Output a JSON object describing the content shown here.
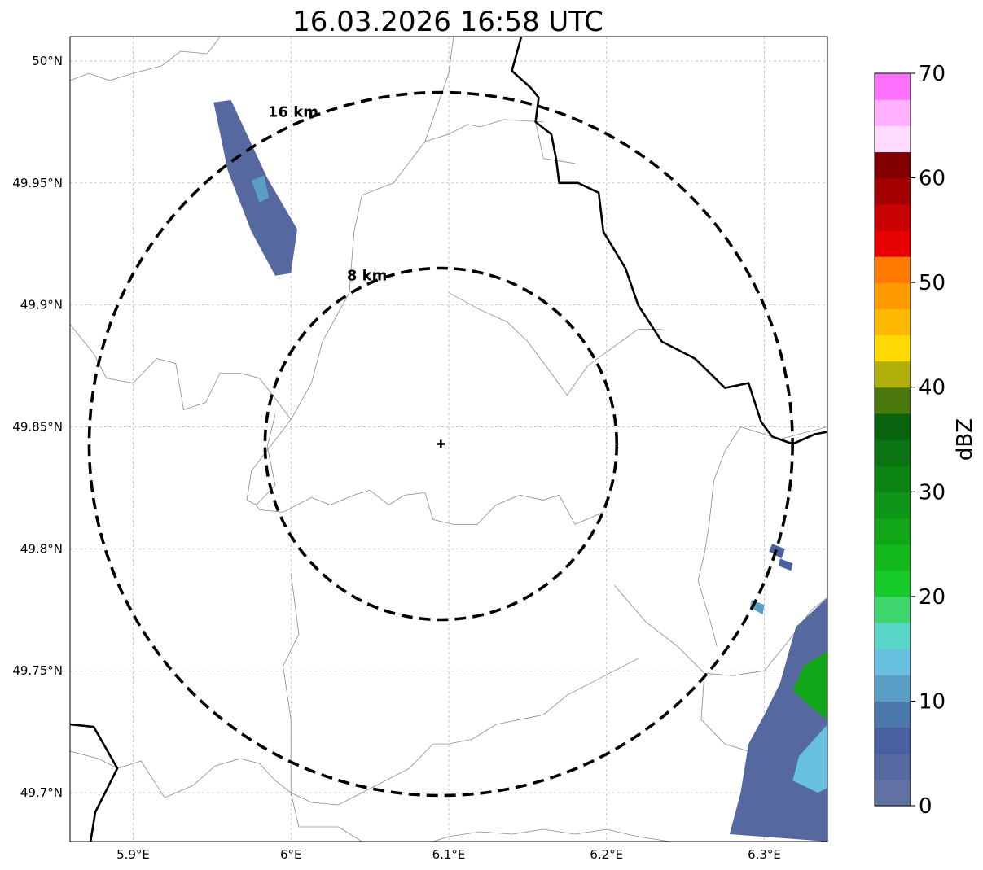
{
  "map": {
    "title": "16.03.2026 16:58 UTC",
    "lon_range": [
      5.86,
      6.34
    ],
    "lat_range": [
      49.68,
      50.01
    ],
    "lon_ticks": [
      {
        "value": 5.9,
        "label": "5.9°E"
      },
      {
        "value": 6.0,
        "label": "6°E"
      },
      {
        "value": 6.1,
        "label": "6.1°E"
      },
      {
        "value": 6.2,
        "label": "6.2°E"
      },
      {
        "value": 6.3,
        "label": "6.3°E"
      }
    ],
    "lat_ticks": [
      {
        "value": 50.0,
        "label": "50°N"
      },
      {
        "value": 49.95,
        "label": "49.95°N"
      },
      {
        "value": 49.9,
        "label": "49.9°N"
      },
      {
        "value": 49.85,
        "label": "49.85°N"
      },
      {
        "value": 49.8,
        "label": "49.8°N"
      },
      {
        "value": 49.75,
        "label": "49.75°N"
      },
      {
        "value": 49.7,
        "label": "49.7°N"
      }
    ],
    "gridlines": true,
    "radar_site": {
      "lon": 6.095,
      "lat": 49.843
    },
    "range_rings": [
      {
        "label": "8 km",
        "radius_km": 8
      },
      {
        "label": "16 km",
        "radius_km": 16
      }
    ]
  },
  "colorbar": {
    "label": "dBZ",
    "min": 0,
    "max": 70,
    "step": 2.5,
    "ticks": [
      "0",
      "10",
      "20",
      "30",
      "40",
      "50",
      "60",
      "70"
    ],
    "colors": [
      "#6272a5",
      "#5568a0",
      "#48609f",
      "#4a78ab",
      "#5a9ec6",
      "#67c0de",
      "#5ad6c8",
      "#3fd66e",
      "#17cc2a",
      "#12b81c",
      "#10a618",
      "#0e9416",
      "#0c8414",
      "#0a7312",
      "#08620e",
      "#4a7a0e",
      "#afb00a",
      "#ffd900",
      "#ffb900",
      "#ff9a00",
      "#ff7a00",
      "#e60000",
      "#c80000",
      "#a50000",
      "#820000",
      "#ffdcff",
      "#ffb0ff",
      "#ff70ff",
      "#f23cf2"
    ]
  },
  "echoes": [
    {
      "name": "northwest-band",
      "reflectivity_dbz": 3,
      "polygon": [
        [
          5.951,
          49.983
        ],
        [
          5.962,
          49.984
        ],
        [
          5.985,
          49.952
        ],
        [
          6.004,
          49.931
        ],
        [
          6.0,
          49.913
        ],
        [
          5.99,
          49.912
        ],
        [
          5.975,
          49.93
        ],
        [
          5.96,
          49.955
        ]
      ]
    },
    {
      "name": "northwest-core",
      "reflectivity_dbz": 12,
      "polygon": [
        [
          5.975,
          49.951
        ],
        [
          5.983,
          49.953
        ],
        [
          5.986,
          49.944
        ],
        [
          5.98,
          49.942
        ]
      ]
    },
    {
      "name": "southeast-cell",
      "reflectivity_dbz": 4,
      "polygon": [
        [
          6.34,
          49.78
        ],
        [
          6.32,
          49.768
        ],
        [
          6.31,
          49.745
        ],
        [
          6.3,
          49.732
        ],
        [
          6.29,
          49.72
        ],
        [
          6.285,
          49.7
        ],
        [
          6.278,
          49.683
        ],
        [
          6.34,
          49.68
        ]
      ]
    },
    {
      "name": "southeast-green-core",
      "reflectivity_dbz": 25,
      "polygon": [
        [
          6.34,
          49.758
        ],
        [
          6.325,
          49.752
        ],
        [
          6.318,
          49.742
        ],
        [
          6.33,
          49.735
        ],
        [
          6.34,
          49.73
        ]
      ]
    },
    {
      "name": "southeast-cyan-core",
      "reflectivity_dbz": 14,
      "polygon": [
        [
          6.34,
          49.728
        ],
        [
          6.322,
          49.715
        ],
        [
          6.318,
          49.705
        ],
        [
          6.334,
          49.7
        ],
        [
          6.34,
          49.702
        ]
      ]
    },
    {
      "name": "east-fragment-1",
      "reflectivity_dbz": 5,
      "polygon": [
        [
          6.305,
          49.802
        ],
        [
          6.313,
          49.8
        ],
        [
          6.311,
          49.796
        ],
        [
          6.303,
          49.799
        ]
      ]
    },
    {
      "name": "east-fragment-2",
      "reflectivity_dbz": 5,
      "polygon": [
        [
          6.31,
          49.796
        ],
        [
          6.318,
          49.794
        ],
        [
          6.317,
          49.791
        ],
        [
          6.309,
          49.793
        ]
      ]
    },
    {
      "name": "east-fragment-3",
      "reflectivity_dbz": 10,
      "polygon": [
        [
          6.292,
          49.779
        ],
        [
          6.3,
          49.777
        ],
        [
          6.299,
          49.773
        ],
        [
          6.291,
          49.776
        ]
      ]
    }
  ],
  "borders": [
    {
      "name": "border-northeast",
      "points": [
        [
          6.146,
          50.01
        ],
        [
          6.14,
          49.996
        ],
        [
          6.152,
          49.989
        ],
        [
          6.157,
          49.985
        ],
        [
          6.155,
          49.975
        ],
        [
          6.165,
          49.97
        ],
        [
          6.168,
          49.96
        ],
        [
          6.17,
          49.95
        ],
        [
          6.182,
          49.95
        ],
        [
          6.195,
          49.946
        ],
        [
          6.198,
          49.93
        ],
        [
          6.212,
          49.915
        ],
        [
          6.22,
          49.9
        ],
        [
          6.235,
          49.885
        ],
        [
          6.256,
          49.878
        ],
        [
          6.275,
          49.866
        ],
        [
          6.29,
          49.868
        ],
        [
          6.298,
          49.852
        ],
        [
          6.305,
          49.846
        ],
        [
          6.318,
          49.843
        ],
        [
          6.332,
          49.847
        ],
        [
          6.34,
          49.848
        ]
      ]
    },
    {
      "name": "border-southwest",
      "points": [
        [
          5.86,
          49.728
        ],
        [
          5.875,
          49.727
        ],
        [
          5.89,
          49.71
        ],
        [
          5.876,
          49.692
        ],
        [
          5.873,
          49.68
        ]
      ]
    }
  ],
  "boundaries": [
    {
      "name": "admin-line-1",
      "points": [
        [
          5.86,
          49.992
        ],
        [
          5.872,
          49.995
        ],
        [
          5.885,
          49.992
        ],
        [
          5.9,
          49.995
        ],
        [
          5.918,
          49.998
        ],
        [
          5.93,
          50.004
        ],
        [
          5.947,
          50.003
        ],
        [
          5.955,
          50.01
        ]
      ]
    },
    {
      "name": "admin-line-2",
      "points": [
        [
          5.86,
          49.892
        ],
        [
          5.875,
          49.88
        ],
        [
          5.883,
          49.87
        ],
        [
          5.9,
          49.868
        ],
        [
          5.915,
          49.878
        ],
        [
          5.927,
          49.876
        ],
        [
          5.932,
          49.857
        ],
        [
          5.946,
          49.86
        ],
        [
          5.955,
          49.872
        ],
        [
          5.968,
          49.872
        ],
        [
          5.98,
          49.87
        ],
        [
          5.992,
          49.86
        ],
        [
          6.0,
          49.853
        ]
      ]
    },
    {
      "name": "admin-line-3",
      "points": [
        [
          5.99,
          49.855
        ],
        [
          5.985,
          49.842
        ],
        [
          5.99,
          49.826
        ],
        [
          5.978,
          49.818
        ],
        [
          5.98,
          49.816
        ],
        [
          5.995,
          49.815
        ],
        [
          6.013,
          49.821
        ],
        [
          6.025,
          49.818
        ],
        [
          6.04,
          49.822
        ],
        [
          6.05,
          49.824
        ],
        [
          6.062,
          49.818
        ],
        [
          6.072,
          49.822
        ],
        [
          6.085,
          49.823
        ],
        [
          6.09,
          49.812
        ],
        [
          6.103,
          49.81
        ],
        [
          6.118,
          49.81
        ],
        [
          6.13,
          49.818
        ],
        [
          6.145,
          49.822
        ],
        [
          6.16,
          49.82
        ],
        [
          6.17,
          49.822
        ],
        [
          6.18,
          49.81
        ],
        [
          6.198,
          49.815
        ]
      ]
    },
    {
      "name": "admin-line-4",
      "points": [
        [
          6.0,
          49.853
        ],
        [
          6.013,
          49.868
        ],
        [
          6.02,
          49.885
        ],
        [
          6.037,
          49.905
        ],
        [
          6.04,
          49.93
        ],
        [
          6.045,
          49.945
        ],
        [
          6.065,
          49.95
        ],
        [
          6.085,
          49.967
        ],
        [
          6.1,
          49.995
        ],
        [
          6.103,
          50.01
        ]
      ]
    },
    {
      "name": "admin-line-5",
      "points": [
        [
          6.085,
          49.967
        ],
        [
          6.1,
          49.97
        ],
        [
          6.112,
          49.974
        ],
        [
          6.12,
          49.973
        ],
        [
          6.135,
          49.976
        ],
        [
          6.16,
          49.975
        ]
      ]
    },
    {
      "name": "admin-line-6",
      "points": [
        [
          6.155,
          49.975
        ],
        [
          6.16,
          49.96
        ],
        [
          6.18,
          49.958
        ]
      ]
    },
    {
      "name": "admin-line-7",
      "points": [
        [
          6.1,
          49.905
        ],
        [
          6.12,
          49.898
        ],
        [
          6.137,
          49.893
        ],
        [
          6.15,
          49.885
        ],
        [
          6.165,
          49.872
        ],
        [
          6.175,
          49.863
        ],
        [
          6.188,
          49.875
        ],
        [
          6.205,
          49.883
        ],
        [
          6.22,
          49.89
        ],
        [
          6.235,
          49.89
        ]
      ]
    },
    {
      "name": "admin-line-8",
      "points": [
        [
          6.205,
          49.785
        ],
        [
          6.225,
          49.77
        ],
        [
          6.245,
          49.76
        ],
        [
          6.262,
          49.749
        ],
        [
          6.28,
          49.748
        ],
        [
          6.3,
          49.75
        ],
        [
          6.315,
          49.762
        ],
        [
          6.33,
          49.775
        ],
        [
          6.34,
          49.78
        ]
      ]
    },
    {
      "name": "admin-line-9",
      "points": [
        [
          6.262,
          49.749
        ],
        [
          6.26,
          49.73
        ],
        [
          6.275,
          49.72
        ],
        [
          6.3,
          49.715
        ]
      ]
    },
    {
      "name": "admin-line-10",
      "points": [
        [
          6.34,
          49.85
        ],
        [
          6.31,
          49.845
        ],
        [
          6.285,
          49.85
        ],
        [
          6.275,
          49.84
        ],
        [
          6.268,
          49.828
        ],
        [
          6.265,
          49.81
        ],
        [
          6.262,
          49.798
        ],
        [
          6.258,
          49.787
        ],
        [
          6.265,
          49.772
        ],
        [
          6.27,
          49.76
        ]
      ]
    },
    {
      "name": "admin-line-11",
      "points": [
        [
          5.86,
          49.717
        ],
        [
          5.878,
          49.714
        ],
        [
          5.89,
          49.71
        ]
      ]
    },
    {
      "name": "admin-line-12",
      "points": [
        [
          5.89,
          49.71
        ],
        [
          5.905,
          49.713
        ],
        [
          5.92,
          49.698
        ],
        [
          5.938,
          49.703
        ],
        [
          5.952,
          49.711
        ],
        [
          5.968,
          49.714
        ],
        [
          5.98,
          49.712
        ],
        [
          5.99,
          49.705
        ],
        [
          6.0,
          49.7
        ],
        [
          6.013,
          49.696
        ],
        [
          6.03,
          49.695
        ],
        [
          6.045,
          49.7
        ],
        [
          6.06,
          49.705
        ],
        [
          6.075,
          49.71
        ],
        [
          6.09,
          49.72
        ],
        [
          6.1,
          49.72
        ],
        [
          6.115,
          49.722
        ],
        [
          6.13,
          49.728
        ],
        [
          6.145,
          49.73
        ],
        [
          6.16,
          49.732
        ],
        [
          6.175,
          49.74
        ],
        [
          6.19,
          49.745
        ],
        [
          6.205,
          49.75
        ],
        [
          6.22,
          49.755
        ]
      ]
    },
    {
      "name": "admin-line-13",
      "points": [
        [
          6.0,
          49.79
        ],
        [
          6.005,
          49.765
        ],
        [
          5.995,
          49.752
        ],
        [
          6.0,
          49.73
        ],
        [
          6.0,
          49.7
        ],
        [
          6.005,
          49.686
        ],
        [
          6.03,
          49.686
        ],
        [
          6.045,
          49.68
        ]
      ]
    },
    {
      "name": "admin-line-14",
      "points": [
        [
          6.09,
          49.68
        ],
        [
          6.1,
          49.682
        ],
        [
          6.12,
          49.684
        ],
        [
          6.14,
          49.683
        ],
        [
          6.16,
          49.685
        ],
        [
          6.18,
          49.683
        ],
        [
          6.2,
          49.685
        ],
        [
          6.22,
          49.682
        ],
        [
          6.24,
          49.68
        ]
      ]
    },
    {
      "name": "admin-line-15",
      "points": [
        [
          6.0,
          49.853
        ],
        [
          5.975,
          49.832
        ],
        [
          5.972,
          49.82
        ],
        [
          5.978,
          49.818
        ]
      ]
    }
  ]
}
